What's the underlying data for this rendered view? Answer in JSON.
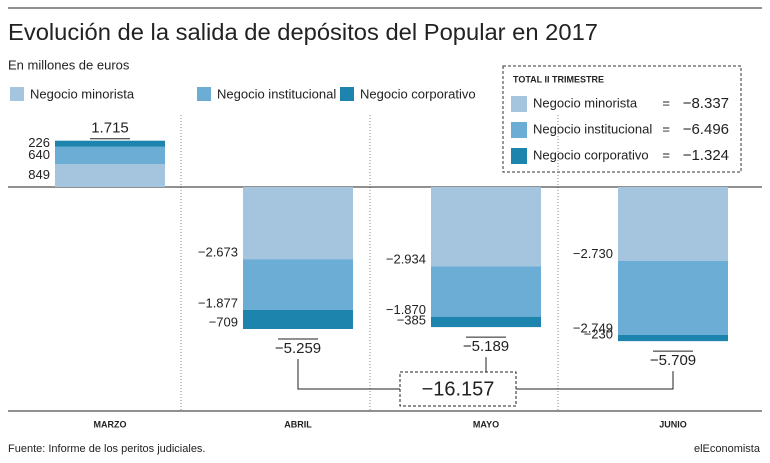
{
  "chart_data": {
    "type": "bar",
    "stacked": true,
    "title": "Evolución de la salida de depósitos del Popular en 2017",
    "subtitle": "En millones de euros",
    "source": "Fuente: Informe de los peritos judiciales.",
    "brand": "elEconomista",
    "categories": [
      "MARZO",
      "ABRIL",
      "MAYO",
      "JUNIO"
    ],
    "series": [
      {
        "name": "Negocio minorista",
        "color": "#a5c4dd",
        "values": [
          849,
          -2673,
          -2934,
          -2730
        ],
        "value_labels": [
          "849",
          "−2.673",
          "−2.934",
          "−2.730"
        ]
      },
      {
        "name": "Negocio institucional",
        "color": "#6cadd6",
        "values": [
          640,
          -1877,
          -1870,
          -2749
        ],
        "value_labels": [
          "640",
          "−1.877",
          "−1.870",
          "−2.749"
        ]
      },
      {
        "name": "Negocio corporativo",
        "color": "#1d84ae",
        "values": [
          226,
          -709,
          -385,
          -230
        ],
        "value_labels": [
          "226",
          "−709",
          "−385",
          "−230"
        ]
      }
    ],
    "totals": {
      "values": [
        1715,
        -5259,
        -5189,
        -5709
      ],
      "value_labels": [
        "1.715",
        "−5.259",
        "−5.189",
        "−5.709"
      ]
    },
    "grand_total": {
      "value": -16157,
      "label": "−16.157"
    },
    "summary": {
      "title": "TOTAL II TRIMESTRE",
      "separator": "=",
      "values": [
        -8337,
        -6496,
        -1324
      ],
      "value_labels": [
        "−8.337",
        "−6.496",
        "−1.324"
      ]
    }
  }
}
